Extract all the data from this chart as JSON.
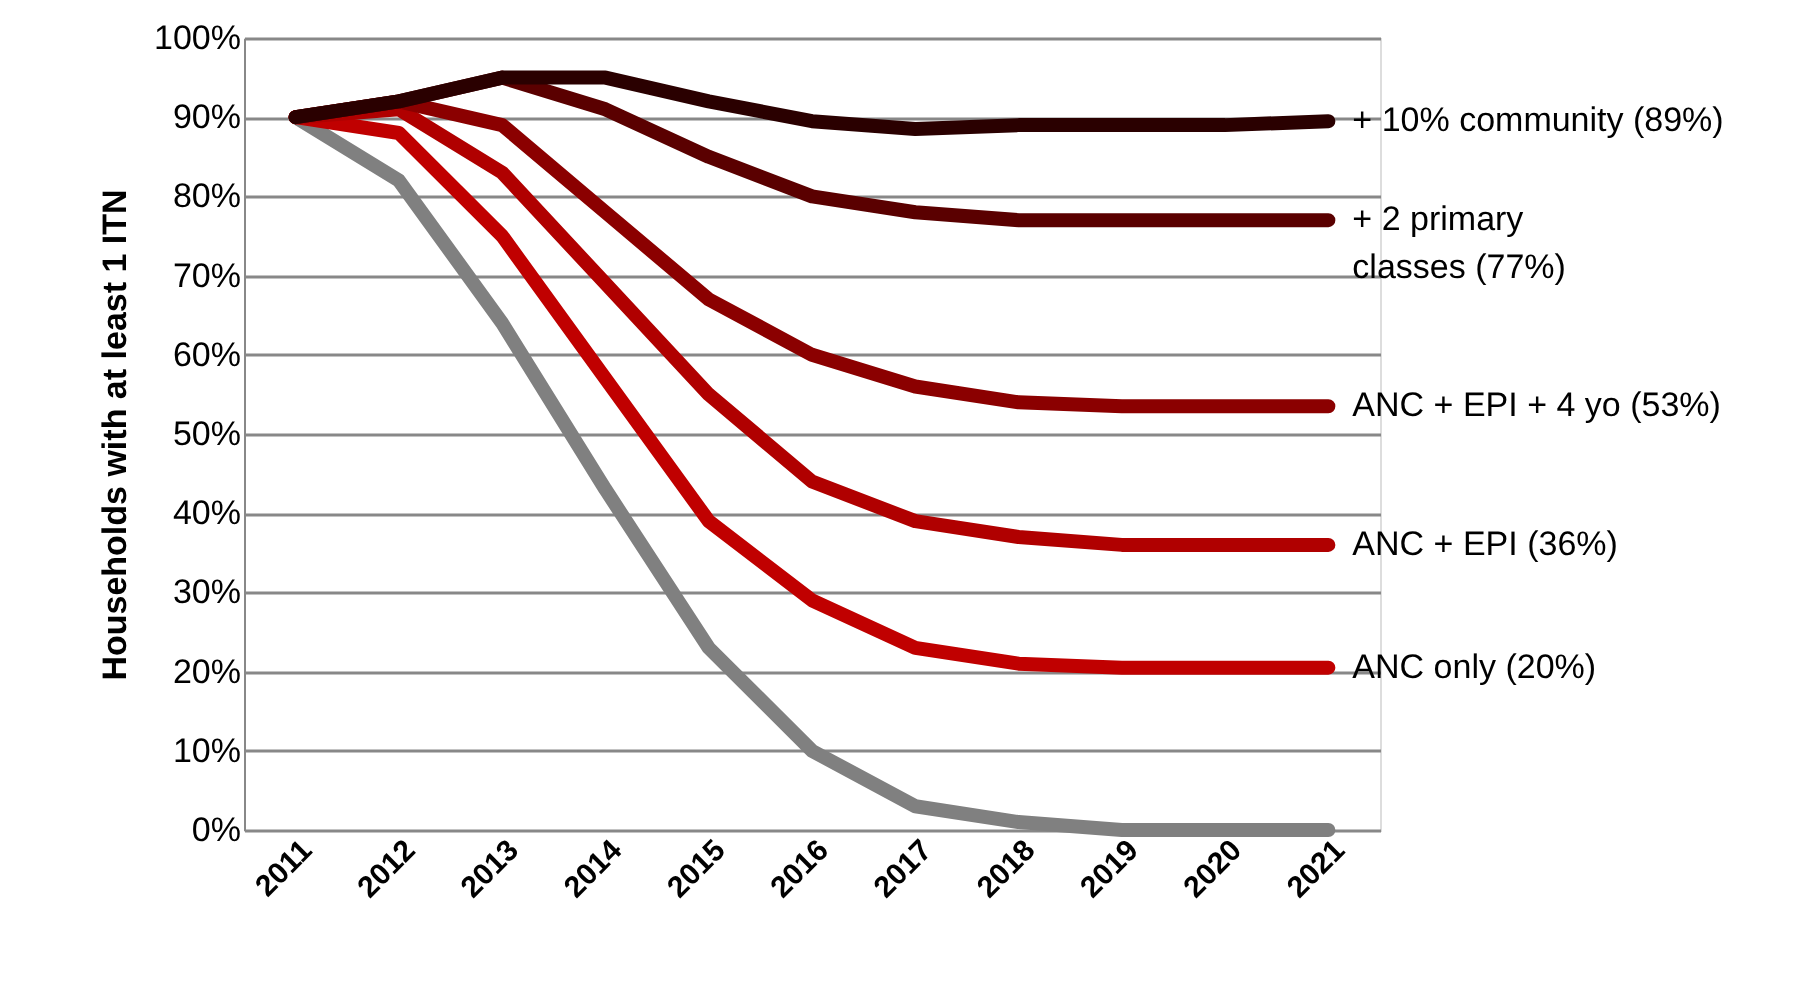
{
  "chart_data": {
    "type": "line",
    "ylabel": "Households with at least 1 ITN",
    "categories": [
      "2011",
      "2012",
      "2013",
      "2014",
      "2015",
      "2016",
      "2017",
      "2018",
      "2019",
      "2020",
      "2021"
    ],
    "series": [
      {
        "color": "#808080",
        "values": [
          90,
          82,
          64,
          43,
          23,
          10,
          3,
          1,
          0,
          0,
          0
        ]
      },
      {
        "name": "ANC only (20%)",
        "color": "#c00000",
        "values": [
          90,
          88,
          75,
          57,
          39,
          29,
          23,
          21,
          20.5,
          20.5,
          20.5
        ]
      },
      {
        "name": "ANC + EPI (36%)",
        "color": "#b00000",
        "values": [
          90,
          91,
          83,
          69,
          55,
          44,
          39,
          37,
          36,
          36,
          36
        ]
      },
      {
        "name": "ANC + EPI + 4 yo (53%)",
        "color": "#8b0000",
        "values": [
          90,
          92,
          89,
          78,
          67,
          60,
          56,
          54,
          53.5,
          53.5,
          53.5
        ]
      },
      {
        "name": "+ 2 primary classes (77%)",
        "color": "#5a0000",
        "values": [
          90,
          92,
          95,
          91,
          85,
          80,
          78,
          77,
          77,
          77,
          77
        ]
      },
      {
        "name": "+ 10% community (89%)",
        "color": "#2a0000",
        "values": [
          90,
          92,
          95,
          95,
          92,
          89.5,
          88.5,
          89,
          89,
          89,
          89.5
        ]
      }
    ],
    "ylim": [
      0,
      100
    ],
    "yticks": [
      {
        "value": 0,
        "label": "0%"
      },
      {
        "value": 10,
        "label": "10%"
      },
      {
        "value": 20,
        "label": "20%"
      },
      {
        "value": 30,
        "label": "30%"
      },
      {
        "value": 40,
        "label": "40%"
      },
      {
        "value": 50,
        "label": "50%"
      },
      {
        "value": 60,
        "label": "60%"
      },
      {
        "value": 70,
        "label": "70%"
      },
      {
        "value": 80,
        "label": "80%"
      },
      {
        "value": 90,
        "label": "90%"
      },
      {
        "value": 100,
        "label": "100%"
      }
    ],
    "grid": "y",
    "marker": "none",
    "line_style": "solid"
  }
}
